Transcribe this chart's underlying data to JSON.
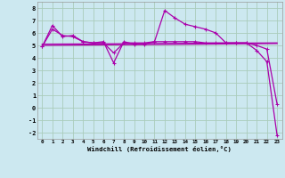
{
  "background_color": "#cce8f0",
  "grid_color": "#aaccbb",
  "line_color": "#aa00aa",
  "xlabel": "Windchill (Refroidissement éolien,°C)",
  "xlim": [
    -0.5,
    23.5
  ],
  "ylim": [
    -2.5,
    8.5
  ],
  "yticks": [
    -2,
    -1,
    0,
    1,
    2,
    3,
    4,
    5,
    6,
    7,
    8
  ],
  "xticks": [
    0,
    1,
    2,
    3,
    4,
    5,
    6,
    7,
    8,
    9,
    10,
    11,
    12,
    13,
    14,
    15,
    16,
    17,
    18,
    19,
    20,
    21,
    22,
    23
  ],
  "series1_x": [
    0,
    1,
    2,
    3,
    4,
    5,
    6,
    7,
    8,
    9,
    10,
    11,
    12,
    13,
    14,
    15,
    16,
    17,
    18,
    19,
    20,
    21,
    22,
    23
  ],
  "series1_y": [
    4.9,
    6.6,
    5.7,
    5.8,
    5.3,
    5.2,
    5.3,
    3.6,
    5.3,
    5.1,
    5.1,
    5.3,
    7.8,
    7.2,
    6.7,
    6.5,
    6.3,
    6.0,
    5.2,
    5.2,
    5.2,
    4.6,
    3.7,
    -2.2
  ],
  "series2_x": [
    0,
    1,
    2,
    3,
    4,
    5,
    6,
    7,
    8,
    9,
    10,
    11,
    12,
    13,
    14,
    15,
    16,
    17,
    18,
    19,
    20,
    21,
    22,
    23
  ],
  "series2_y": [
    4.9,
    6.3,
    5.8,
    5.7,
    5.3,
    5.2,
    5.2,
    4.4,
    5.2,
    5.2,
    5.2,
    5.3,
    5.3,
    5.3,
    5.3,
    5.3,
    5.2,
    5.2,
    5.2,
    5.2,
    5.2,
    5.0,
    4.7,
    0.3
  ],
  "series3_x": [
    0,
    23
  ],
  "series3_y": [
    5.1,
    5.2
  ],
  "series4_x": [
    0,
    23
  ],
  "series4_y": [
    5.0,
    5.15
  ]
}
